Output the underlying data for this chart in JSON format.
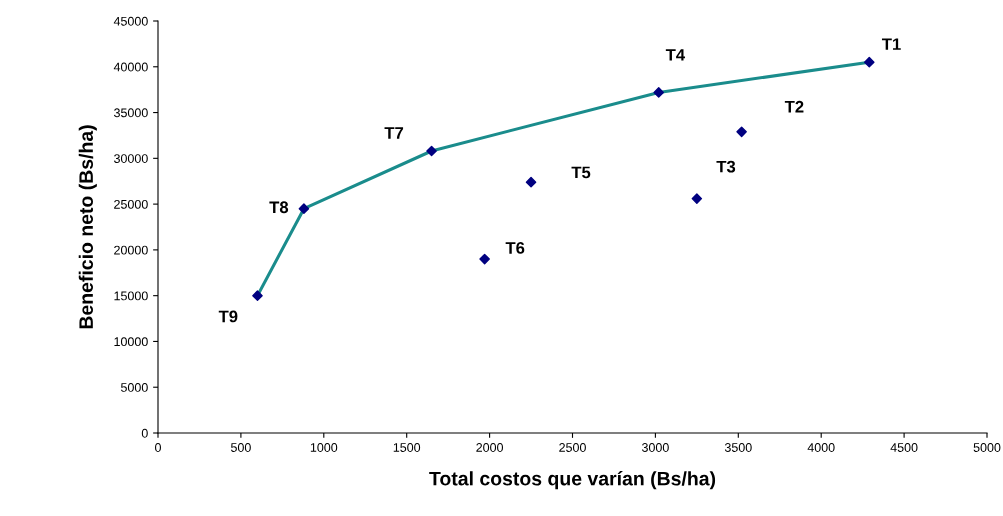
{
  "chart_data": {
    "type": "scatter",
    "xlabel": "Total costos que varían (Bs/ha)",
    "ylabel": "Beneficio neto (Bs/ha)",
    "xlim": [
      0,
      5000
    ],
    "xticks": [
      0,
      500,
      1000,
      1500,
      2000,
      2500,
      3000,
      3500,
      4000,
      4500,
      5000
    ],
    "ylim": [
      0,
      45000
    ],
    "yticks": [
      0,
      5000,
      10000,
      15000,
      20000,
      25000,
      30000,
      35000,
      40000,
      45000
    ],
    "grid": false,
    "legend": false,
    "marker": "diamond",
    "series": [
      {
        "type": "line",
        "marker": "none",
        "color": "#1a8c8c",
        "x": [
          600,
          880,
          1650,
          3020,
          4290
        ],
        "values": [
          15000,
          24500,
          30800,
          37200,
          40500
        ]
      },
      {
        "color": "#000080",
        "x": [
          4290,
          3520,
          3250,
          3020,
          2250,
          1970,
          1650,
          880,
          600
        ],
        "values": [
          40500,
          32900,
          25600,
          37200,
          27400,
          19000,
          30800,
          24500,
          15000
        ]
      }
    ],
    "annotations": [
      {
        "text": "T1",
        "x": 4290,
        "y": 40500
      },
      {
        "text": "T2",
        "x": 3520,
        "y": 32900
      },
      {
        "text": "T3",
        "x": 3250,
        "y": 25600
      },
      {
        "text": "T4",
        "x": 3020,
        "y": 37200
      },
      {
        "text": "T5",
        "x": 2250,
        "y": 27400
      },
      {
        "text": "T6",
        "x": 1970,
        "y": 19000
      },
      {
        "text": "T7",
        "x": 1650,
        "y": 30800
      },
      {
        "text": "T8",
        "x": 880,
        "y": 24500
      },
      {
        "text": "T9",
        "x": 600,
        "y": 15000
      }
    ]
  }
}
